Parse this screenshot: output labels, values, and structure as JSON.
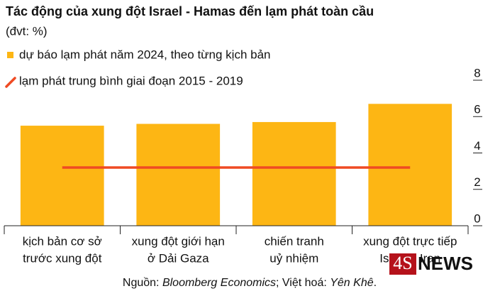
{
  "chart_data": {
    "type": "bar",
    "title": "Tác động của xung đột Israel - Hamas đến lạm phát toàn cầu",
    "subtitle": "(đvt: %)",
    "categories": [
      [
        "kịch bản cơ sở",
        "trước xung đột"
      ],
      [
        "xung đột giới hạn",
        "ở Dải Gaza"
      ],
      [
        "chiến tranh",
        "uỷ nhiệm"
      ],
      [
        "xung đột trực tiếp",
        "Israel - Iran"
      ]
    ],
    "series": [
      {
        "name": "dự báo lạm phát năm 2024, theo từng kịch bản",
        "color": "#fdb614",
        "type": "bar",
        "values": [
          5.5,
          5.6,
          5.7,
          6.7
        ]
      },
      {
        "name": "lạm phát trung bình giai đoạn 2015 - 2019",
        "color": "#ef4a23",
        "type": "line",
        "values": [
          3.2,
          3.2,
          3.2,
          3.2
        ]
      }
    ],
    "ylim": [
      0,
      8
    ],
    "yticks": [
      0,
      2,
      4,
      6,
      8
    ],
    "source": [
      "Nguồn: ",
      "Bloomberg Economics",
      "; Việt hoá: ",
      "Yên Khê",
      "."
    ],
    "source_italic": [
      false,
      true,
      false,
      true,
      false
    ],
    "watermark": [
      "4S",
      "NEWS"
    ]
  }
}
